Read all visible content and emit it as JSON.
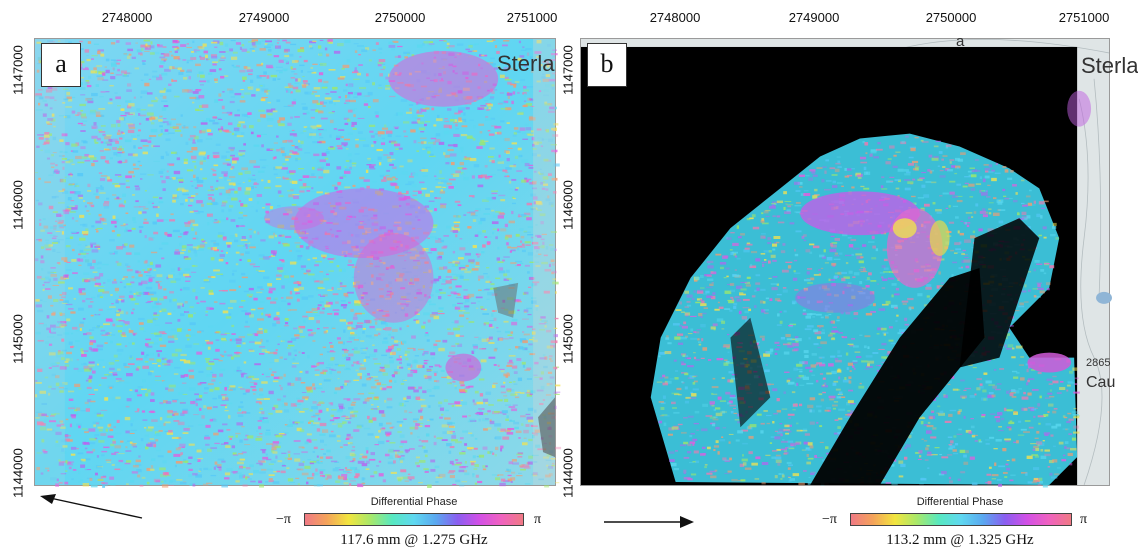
{
  "panels": [
    {
      "letter": "a",
      "x_ticks": [
        "2748000",
        "2749000",
        "2750000",
        "2751000"
      ],
      "y_ticks": [
        "1147000",
        "1146000",
        "1145000",
        "1144000"
      ],
      "place_labels": [
        "Sterla"
      ],
      "legend_title": "Differential Phase",
      "colorbar_min": "−π",
      "colorbar_max": "π",
      "caption": "117.6 mm @ 1.275 GHz",
      "arrow_direction": "left"
    },
    {
      "letter": "b",
      "x_ticks": [
        "2748000",
        "2749000",
        "2750000",
        "2751000"
      ],
      "y_ticks": [
        "1147000",
        "1146000",
        "1145000",
        "1144000"
      ],
      "place_labels": [
        "Sterla",
        "a",
        "Cau",
        "2865"
      ],
      "legend_title": "Differential Phase",
      "colorbar_min": "−π",
      "colorbar_max": "π",
      "caption": "113.2 mm @ 1.325 GHz",
      "arrow_direction": "right"
    }
  ],
  "colors": {
    "background": "#ffffff",
    "mask": "#000000",
    "phase_base": "#5fd8f0"
  }
}
